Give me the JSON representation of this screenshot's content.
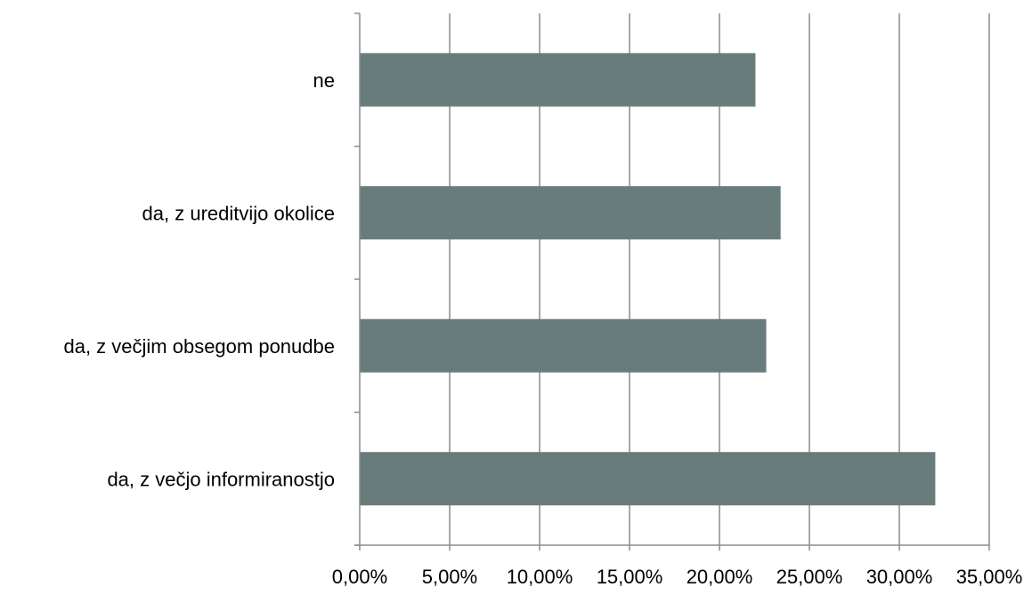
{
  "chart_data": {
    "type": "bar",
    "orientation": "horizontal",
    "categories": [
      "ne",
      "da, z ureditvijo okolice",
      "da, z večjim obsegom ponudbe",
      "da, z večjo informiranostjo"
    ],
    "values": [
      22.0,
      23.4,
      22.6,
      32.0
    ],
    "xlim": [
      0,
      35
    ],
    "xticks": [
      0,
      5,
      10,
      15,
      20,
      25,
      30,
      35
    ],
    "xtick_labels": [
      "0,00%",
      "5,00%",
      "10,00%",
      "15,00%",
      "20,00%",
      "25,00%",
      "30,00%",
      "35,00%"
    ],
    "title": "",
    "xlabel": "",
    "ylabel": "",
    "grid": "vertical",
    "legend": "none",
    "colors": {
      "bar": "#687c7b",
      "grid": "#8c8c8c",
      "axis": "#8c8c8c",
      "text": "#000000"
    }
  }
}
